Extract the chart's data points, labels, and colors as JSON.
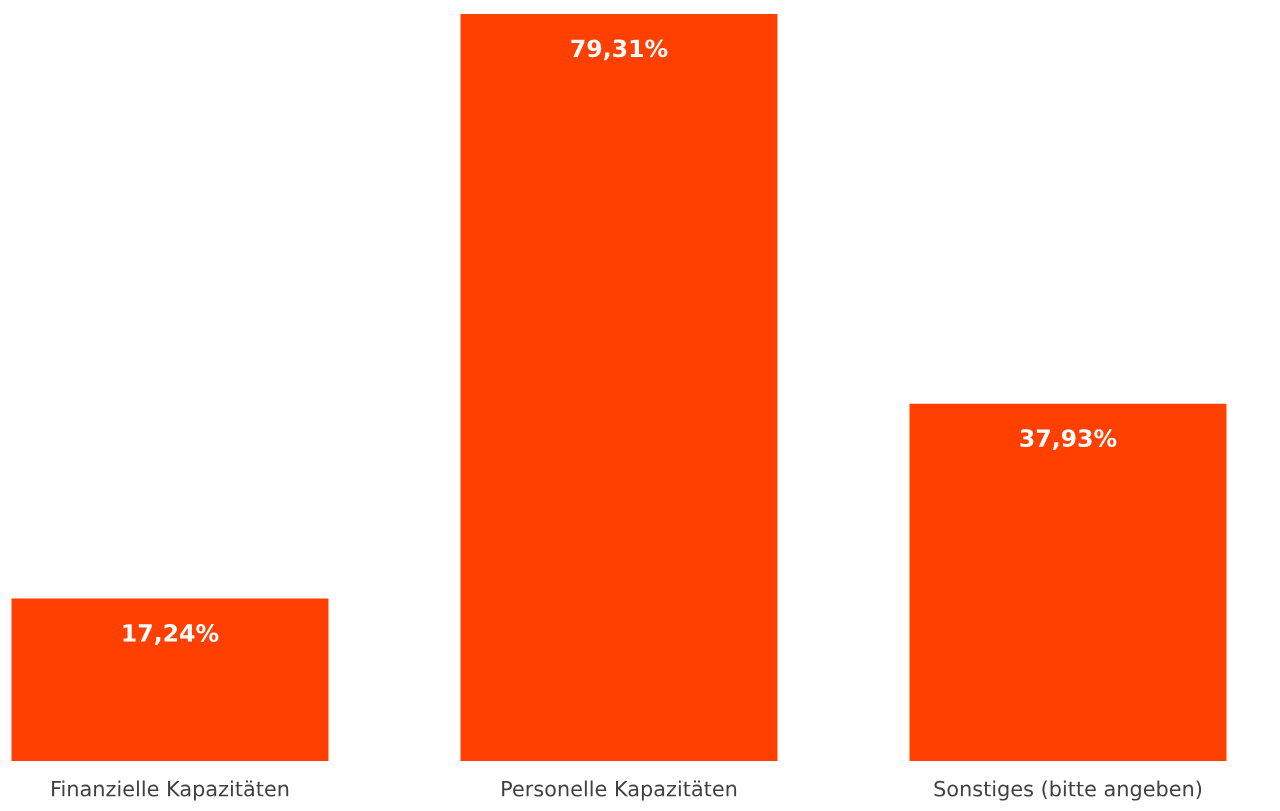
{
  "chart_data": {
    "type": "bar",
    "categories": [
      "Finanzielle Kapazitäten",
      "Personelle Kapazitäten",
      "Sonstiges (bitte angeben)"
    ],
    "values": [
      17.24,
      79.31,
      37.93
    ],
    "value_labels": [
      "17,24%",
      "79,31%",
      "37,93%"
    ],
    "color": "#ff4000",
    "grid": false,
    "legend": false
  }
}
